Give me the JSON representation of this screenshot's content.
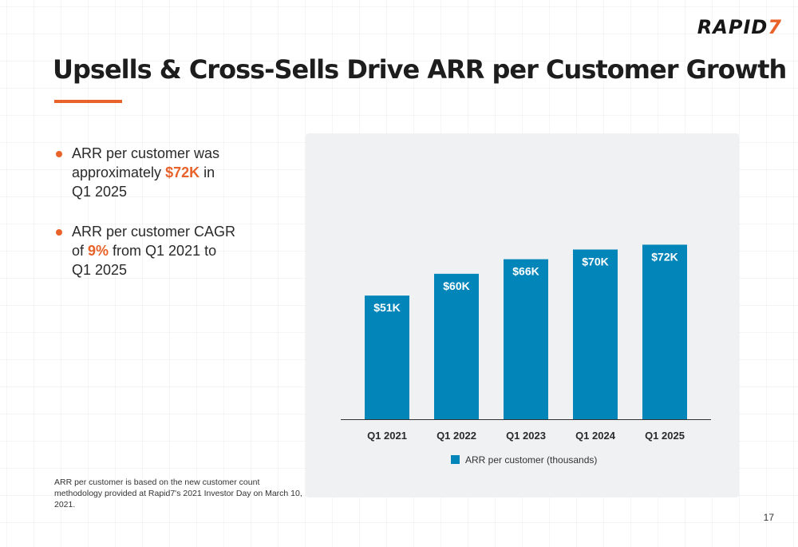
{
  "logo": {
    "text": "RAPID",
    "mark": "7"
  },
  "title": "Upsells & Cross-Sells Drive ARR per Customer Growth",
  "bullets": [
    {
      "before": "ARR per customer was approximately ",
      "highlight": "$72K",
      "after": " in Q1 2025"
    },
    {
      "before": "ARR per customer CAGR of ",
      "highlight": "9%",
      "after": " from Q1 2021 to Q1 2025"
    }
  ],
  "footnote": "ARR per customer is based on the new customer count methodology provided at Rapid7's 2021 Investor Day on March 10, 2021.",
  "page_number": "17",
  "colors": {
    "accent": "#e8622a",
    "bar": "#0285b8",
    "panel": "#eff1f3"
  },
  "chart_data": {
    "type": "bar",
    "categories": [
      "Q1 2021",
      "Q1 2022",
      "Q1 2023",
      "Q1 2024",
      "Q1 2025"
    ],
    "series": [
      {
        "name": "ARR per customer (thousands)",
        "values": [
          51,
          60,
          66,
          70,
          72
        ]
      }
    ],
    "data_labels": [
      "$51K",
      "$60K",
      "$66K",
      "$70K",
      "$72K"
    ],
    "ylim": [
      0,
      78
    ],
    "legend_position": "bottom",
    "grid": false
  }
}
